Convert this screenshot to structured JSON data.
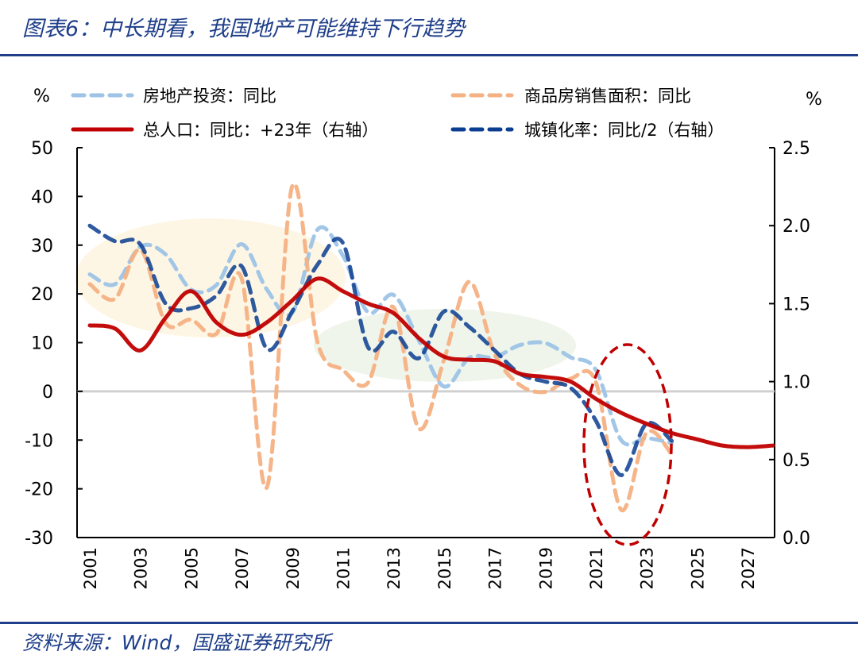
{
  "title": "图表6：中长期看，我国地产可能维持下行趋势",
  "source": "资料来源：Wind，国盛证券研究所",
  "colors": {
    "investment": "#9dc3e6",
    "sales": "#f4b183",
    "population": "#c00000",
    "urbanization": "#0b3d91",
    "title": "#1f3f8a"
  },
  "chart_data": {
    "type": "line",
    "left_unit": "%",
    "right_unit": "%",
    "ylim_left": [
      -30,
      50
    ],
    "yticks_left": [
      "50",
      "40",
      "30",
      "20",
      "10",
      "0",
      "-10",
      "-20",
      "-30"
    ],
    "ylim_right": [
      0,
      2.5
    ],
    "yticks_right": [
      "2.5",
      "2.0",
      "1.5",
      "1.0",
      "0.5",
      "0.0"
    ],
    "xticks": [
      "2001",
      "2003",
      "2005",
      "2007",
      "2009",
      "2011",
      "2013",
      "2015",
      "2017",
      "2019",
      "2021",
      "2023",
      "2025",
      "2027"
    ],
    "grid": false,
    "legend_position": "top",
    "series": [
      {
        "name": "房地产投资：同比",
        "axis": "left",
        "style": "dashed",
        "x": [
          2001,
          2002,
          2003,
          2004,
          2005,
          2006,
          2007,
          2008,
          2009,
          2010,
          2011,
          2012,
          2013,
          2014,
          2015,
          2016,
          2017,
          2018,
          2019,
          2020,
          2021,
          2022,
          2023,
          2024
        ],
        "values": [
          24.0,
          22.0,
          29.7,
          28.1,
          20.9,
          21.8,
          30.2,
          20.9,
          16.1,
          33.2,
          27.9,
          16.2,
          19.8,
          10.5,
          1.0,
          6.9,
          7.0,
          9.5,
          9.9,
          7.0,
          4.4,
          -10.0,
          -9.6,
          -10.6
        ]
      },
      {
        "name": "商品房销售面积：同比",
        "axis": "left",
        "style": "dashed",
        "x": [
          2001,
          2002,
          2003,
          2004,
          2005,
          2006,
          2007,
          2008,
          2009,
          2010,
          2011,
          2012,
          2013,
          2014,
          2015,
          2016,
          2017,
          2018,
          2019,
          2020,
          2021,
          2022,
          2023,
          2024
        ],
        "values": [
          22.0,
          19.0,
          29.1,
          14.0,
          14.7,
          11.8,
          23.2,
          -19.7,
          42.1,
          10.1,
          4.4,
          1.8,
          17.3,
          -7.6,
          6.5,
          22.5,
          7.7,
          1.3,
          -0.1,
          2.6,
          1.9,
          -24.3,
          -8.5,
          -12.9
        ]
      },
      {
        "name": "总人口：同比：+23年（右轴）",
        "axis": "right",
        "style": "solid",
        "x": [
          2001,
          2002,
          2003,
          2004,
          2005,
          2006,
          2007,
          2008,
          2009,
          2010,
          2011,
          2012,
          2013,
          2014,
          2015,
          2016,
          2017,
          2018,
          2019,
          2020,
          2021,
          2022,
          2023,
          2024,
          2025,
          2026,
          2027,
          2028
        ],
        "values": [
          1.36,
          1.34,
          1.2,
          1.41,
          1.58,
          1.38,
          1.3,
          1.38,
          1.52,
          1.66,
          1.58,
          1.5,
          1.44,
          1.28,
          1.16,
          1.14,
          1.13,
          1.05,
          1.03,
          1.0,
          0.89,
          0.8,
          0.73,
          0.67,
          0.63,
          0.59,
          0.58,
          0.59
        ]
      },
      {
        "name": "城镇化率：同比/2（右轴）",
        "axis": "right",
        "style": "dashed",
        "x": [
          2001,
          2002,
          2003,
          2004,
          2005,
          2006,
          2007,
          2008,
          2009,
          2010,
          2011,
          2012,
          2013,
          2014,
          2015,
          2016,
          2017,
          2018,
          2019,
          2020,
          2021,
          2022,
          2023,
          2024
        ],
        "values": [
          2.0,
          1.9,
          1.88,
          1.5,
          1.47,
          1.55,
          1.74,
          1.21,
          1.45,
          1.75,
          1.89,
          1.22,
          1.32,
          1.15,
          1.45,
          1.35,
          1.2,
          1.05,
          1.0,
          0.96,
          0.75,
          0.4,
          0.73,
          0.62
        ]
      }
    ]
  }
}
